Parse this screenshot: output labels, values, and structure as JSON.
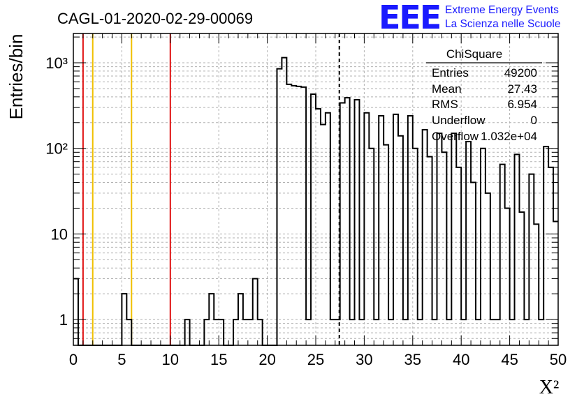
{
  "chart_data": {
    "type": "bar",
    "title": "CAGL-01-2020-02-29-00069",
    "xlabel": "X²",
    "ylabel": "Entries/bin",
    "xlim": [
      0,
      50
    ],
    "ylim": [
      0.5,
      2200
    ],
    "yscale": "log",
    "grid": true,
    "bin_width": 0.5,
    "x_ticks": [
      "0",
      "5",
      "10",
      "15",
      "20",
      "25",
      "30",
      "35",
      "40",
      "45",
      "50"
    ],
    "y_ticks": [
      {
        "value": 1,
        "label": "1"
      },
      {
        "value": 10,
        "label": "10"
      },
      {
        "value": 100,
        "label": "10²"
      },
      {
        "value": 1000,
        "label": "10³"
      }
    ],
    "bins": [
      {
        "x": 0.0,
        "y": 3
      },
      {
        "x": 5.0,
        "y": 2
      },
      {
        "x": 5.5,
        "y": 1
      },
      {
        "x": 11.5,
        "y": 1
      },
      {
        "x": 13.5,
        "y": 1
      },
      {
        "x": 14.0,
        "y": 2
      },
      {
        "x": 14.5,
        "y": 1
      },
      {
        "x": 15.0,
        "y": 1
      },
      {
        "x": 16.5,
        "y": 1
      },
      {
        "x": 17.0,
        "y": 2
      },
      {
        "x": 17.5,
        "y": 1
      },
      {
        "x": 18.0,
        "y": 1
      },
      {
        "x": 18.5,
        "y": 3
      },
      {
        "x": 19.0,
        "y": 1
      },
      {
        "x": 21.0,
        "y": 850
      },
      {
        "x": 21.5,
        "y": 1150
      },
      {
        "x": 22.0,
        "y": 560
      },
      {
        "x": 22.5,
        "y": 540
      },
      {
        "x": 23.0,
        "y": 530
      },
      {
        "x": 23.5,
        "y": 520
      },
      {
        "x": 24.0,
        "y": 1
      },
      {
        "x": 24.5,
        "y": 430
      },
      {
        "x": 25.0,
        "y": 290
      },
      {
        "x": 25.5,
        "y": 190
      },
      {
        "x": 26.0,
        "y": 260
      },
      {
        "x": 26.5,
        "y": 1
      },
      {
        "x": 27.0,
        "y": 1
      },
      {
        "x": 27.5,
        "y": 340
      },
      {
        "x": 28.0,
        "y": 390
      },
      {
        "x": 28.5,
        "y": 1
      },
      {
        "x": 29.0,
        "y": 370
      },
      {
        "x": 29.5,
        "y": 1
      },
      {
        "x": 30.0,
        "y": 260
      },
      {
        "x": 30.5,
        "y": 100
      },
      {
        "x": 31.0,
        "y": 1
      },
      {
        "x": 31.5,
        "y": 240
      },
      {
        "x": 32.0,
        "y": 110
      },
      {
        "x": 32.5,
        "y": 1
      },
      {
        "x": 33.0,
        "y": 250
      },
      {
        "x": 33.5,
        "y": 140
      },
      {
        "x": 34.0,
        "y": 1
      },
      {
        "x": 34.5,
        "y": 240
      },
      {
        "x": 35.0,
        "y": 100
      },
      {
        "x": 35.5,
        "y": 1
      },
      {
        "x": 36.0,
        "y": 165
      },
      {
        "x": 36.5,
        "y": 80
      },
      {
        "x": 37.0,
        "y": 1
      },
      {
        "x": 37.5,
        "y": 150
      },
      {
        "x": 38.0,
        "y": 90
      },
      {
        "x": 38.5,
        "y": 1
      },
      {
        "x": 39.0,
        "y": 150
      },
      {
        "x": 39.5,
        "y": 60
      },
      {
        "x": 40.0,
        "y": 1
      },
      {
        "x": 40.5,
        "y": 120
      },
      {
        "x": 41.0,
        "y": 40
      },
      {
        "x": 41.5,
        "y": 1
      },
      {
        "x": 42.0,
        "y": 100
      },
      {
        "x": 42.5,
        "y": 30
      },
      {
        "x": 43.0,
        "y": 1
      },
      {
        "x": 43.5,
        "y": 1
      },
      {
        "x": 44.0,
        "y": 65
      },
      {
        "x": 44.5,
        "y": 20
      },
      {
        "x": 45.0,
        "y": 1
      },
      {
        "x": 45.5,
        "y": 85
      },
      {
        "x": 46.0,
        "y": 18
      },
      {
        "x": 46.5,
        "y": 1
      },
      {
        "x": 47.0,
        "y": 50
      },
      {
        "x": 47.5,
        "y": 13
      },
      {
        "x": 48.0,
        "y": 1
      },
      {
        "x": 48.5,
        "y": 105
      },
      {
        "x": 49.0,
        "y": 60
      },
      {
        "x": 49.5,
        "y": 14
      }
    ],
    "vertical_lines": [
      {
        "x": 1,
        "color": "#e01010",
        "style": "solid"
      },
      {
        "x": 2,
        "color": "#f0c000",
        "style": "solid"
      },
      {
        "x": 6,
        "color": "#f0c000",
        "style": "solid"
      },
      {
        "x": 10,
        "color": "#e01010",
        "style": "solid"
      },
      {
        "x": 27.43,
        "color": "#000000",
        "style": "dashed"
      }
    ]
  },
  "stats_box": {
    "title": "ChiSquare",
    "rows": [
      {
        "label": "Entries",
        "value": "49200"
      },
      {
        "label": "Mean",
        "value": "27.43"
      },
      {
        "label": "RMS",
        "value": "6.954"
      },
      {
        "label": "Underflow",
        "value": "0"
      },
      {
        "label": "Overflow",
        "value": "1.032e+04"
      }
    ]
  },
  "logo": {
    "mark": "EEE",
    "line1": "Extreme Energy Events",
    "line2": "La Scienza nelle Scuole",
    "color": "#1a1aff"
  },
  "colors": {
    "histogram": "#000000",
    "grid": "#b0b0b0"
  }
}
